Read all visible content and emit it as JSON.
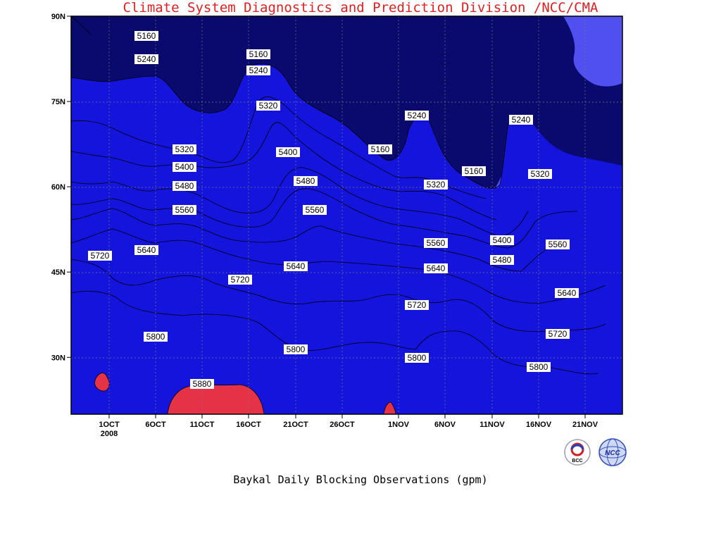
{
  "chart_data": {
    "type": "heatmap",
    "title": "Baykal Daily Blocking Observations (gpm)",
    "xlabel": "",
    "ylabel": "",
    "x_tick_labels": [
      "1OCT",
      "6OCT",
      "11OCT",
      "16OCT",
      "21OCT",
      "26OCT",
      "1NOV",
      "6NOV",
      "11NOV",
      "16NOV",
      "21NOV"
    ],
    "x_year_label": "2008",
    "y_tick_labels": [
      "30N",
      "45N",
      "60N",
      "75N",
      "90N"
    ],
    "ylim": [
      20,
      90
    ],
    "contour_levels": [
      5160,
      5240,
      5320,
      5400,
      5480,
      5560,
      5640,
      5720,
      5800,
      5880
    ],
    "level_colors": {
      "below_5160": "#0a0a6e",
      "5160_5240": "#1414dc",
      "5240_5320": "#5050f0",
      "5320_5400": "#5a96e6",
      "5400_5480": "#64c8ff",
      "5480_5560": "#ffff78",
      "5560_5640": "#ffe6a0",
      "5640_5720": "#ffa064",
      "5720_5800": "#ff7846",
      "5800_5880": "#f56e78",
      "above_5880": "#e63246"
    },
    "contour_labels": [
      {
        "value": "5160"
      },
      {
        "value": "5240"
      },
      {
        "value": "5160"
      },
      {
        "value": "5240"
      },
      {
        "value": "5320"
      },
      {
        "value": "5240"
      },
      {
        "value": "5160"
      },
      {
        "value": "5160"
      },
      {
        "value": "5240"
      },
      {
        "value": "5320"
      },
      {
        "value": "5400"
      },
      {
        "value": "5320"
      },
      {
        "value": "5320"
      },
      {
        "value": "5400"
      },
      {
        "value": "5480"
      },
      {
        "value": "5480"
      },
      {
        "value": "5560"
      },
      {
        "value": "5560"
      },
      {
        "value": "5560"
      },
      {
        "value": "5400"
      },
      {
        "value": "5480"
      },
      {
        "value": "5560"
      },
      {
        "value": "5640"
      },
      {
        "value": "5720"
      },
      {
        "value": "5640"
      },
      {
        "value": "5640"
      },
      {
        "value": "5720"
      },
      {
        "value": "5640"
      },
      {
        "value": "5720"
      },
      {
        "value": "5800"
      },
      {
        "value": "5800"
      },
      {
        "value": "5800"
      },
      {
        "value": "5720"
      },
      {
        "value": "5800"
      },
      {
        "value": "5880"
      }
    ],
    "grid": true
  },
  "footer": "Climate System Diagnostics and Prediction Division /NCC/CMA",
  "logos": [
    "BCC",
    "NCC"
  ]
}
